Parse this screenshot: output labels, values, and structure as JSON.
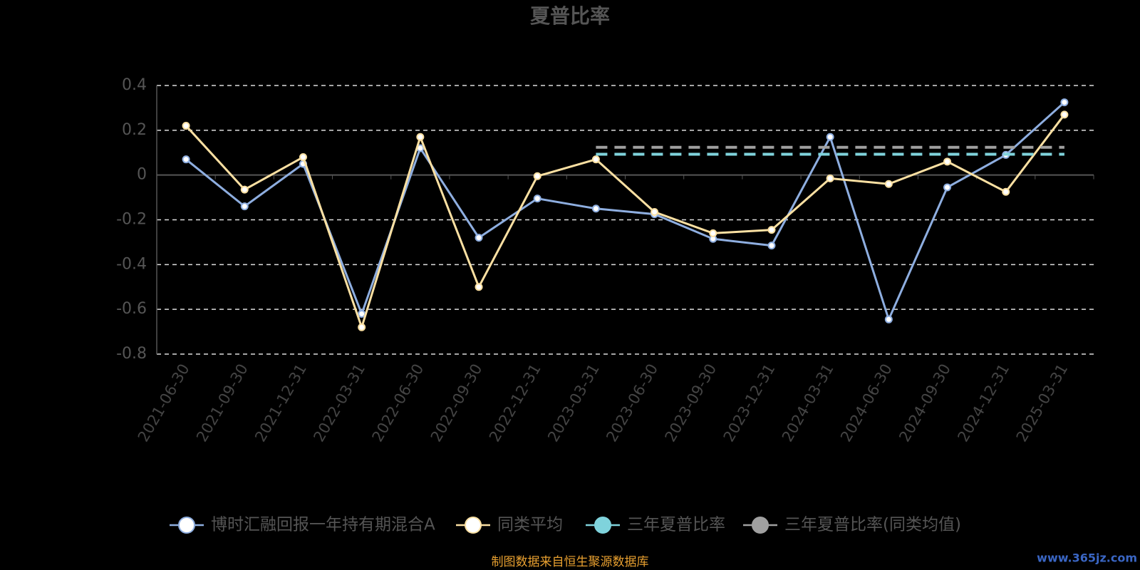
{
  "chart_data": {
    "type": "line",
    "title": "夏普比率",
    "categories": [
      "2021-06-30",
      "2021-09-30",
      "2021-12-31",
      "2022-03-31",
      "2022-06-30",
      "2022-09-30",
      "2022-12-31",
      "2023-03-31",
      "2023-06-30",
      "2023-09-30",
      "2023-12-31",
      "2024-03-31",
      "2024-06-30",
      "2024-09-30",
      "2024-12-31",
      "2025-03-31"
    ],
    "series": [
      {
        "name": "博时汇融回报一年持有期混合A",
        "color": "#8eaee0",
        "marker": true,
        "values": [
          0.07,
          -0.14,
          0.05,
          -0.62,
          0.12,
          -0.28,
          -0.105,
          -0.15,
          -0.175,
          -0.285,
          -0.315,
          0.17,
          -0.645,
          -0.055,
          0.09,
          0.325
        ]
      },
      {
        "name": "同类平均",
        "color": "#fbe0a2",
        "marker": true,
        "values": [
          0.22,
          -0.065,
          0.08,
          -0.68,
          0.17,
          -0.5,
          -0.005,
          0.07,
          -0.165,
          -0.26,
          -0.245,
          -0.015,
          -0.04,
          0.06,
          -0.075,
          0.27
        ]
      },
      {
        "name": "三年夏普比率",
        "color": "#7fd3dc",
        "marker": false,
        "line_style": "dashed",
        "values": [
          null,
          null,
          null,
          null,
          null,
          null,
          null,
          0.093,
          0.093,
          0.093,
          0.093,
          0.093,
          0.093,
          0.093,
          0.093,
          0.093
        ]
      },
      {
        "name": "三年夏普比率(同类均值)",
        "color": "#a0a0a0",
        "marker": false,
        "line_style": "dashed",
        "values": [
          null,
          null,
          null,
          null,
          null,
          null,
          null,
          0.124,
          0.124,
          0.124,
          0.124,
          0.124,
          0.124,
          0.124,
          0.124,
          0.124
        ]
      }
    ],
    "ylim": [
      -0.8,
      0.4
    ],
    "yticks": [
      -0.8,
      -0.6,
      -0.4,
      -0.2,
      0,
      0.2,
      0.4
    ],
    "grid": true,
    "source": "制图数据来自恒生聚源数据库",
    "watermark": "www.365jz.com"
  }
}
